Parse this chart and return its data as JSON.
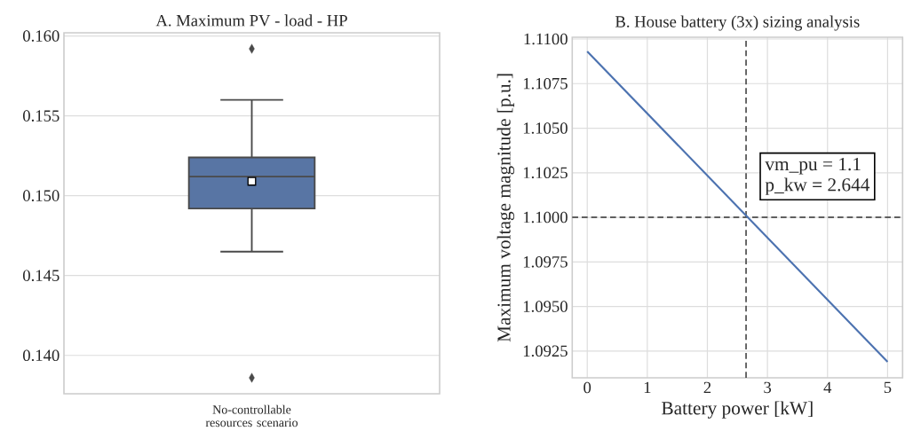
{
  "chart_data": [
    {
      "type": "box",
      "title": "A. Maximum PV - load - HP",
      "categories": [
        "No-controllable resources scenario"
      ],
      "color": "#5875a4",
      "boxes": [
        {
          "low": 0.1465,
          "q1": 0.1492,
          "median": 0.1512,
          "q3": 0.1524,
          "high": 0.156,
          "mean": 0.1509,
          "outliers": [
            0.1592,
            0.1386
          ]
        }
      ],
      "ylim": [
        0.1376,
        0.1602
      ],
      "yticks": [
        {
          "value": 0.14,
          "label": "0.140"
        },
        {
          "value": 0.145,
          "label": "0.145"
        },
        {
          "value": 0.15,
          "label": "0.150"
        },
        {
          "value": 0.155,
          "label": "0.155"
        },
        {
          "value": 0.16,
          "label": "0.160"
        }
      ],
      "grid": "y"
    },
    {
      "type": "line",
      "title": "B. House battery (3x) sizing analysis",
      "xlabel": "Battery power [kW]",
      "ylabel": "Maximum voltage magnitude [p.u.]",
      "x": [
        0,
        5
      ],
      "series": [
        {
          "color": "#4c72b0",
          "values": [
            1.1093,
            1.0919
          ]
        }
      ],
      "xlim": [
        -0.25,
        5.25
      ],
      "ylim": [
        1.091,
        1.1101
      ],
      "xticks": [
        0,
        1,
        2,
        3,
        4,
        5
      ],
      "yticks": [
        {
          "value": 1.0925,
          "label": "1.0925"
        },
        {
          "value": 1.095,
          "label": "1.0950"
        },
        {
          "value": 1.0975,
          "label": "1.0975"
        },
        {
          "value": 1.1,
          "label": "1.1000"
        },
        {
          "value": 1.1025,
          "label": "1.1025"
        },
        {
          "value": 1.105,
          "label": "1.1050"
        },
        {
          "value": 1.1075,
          "label": "1.1075"
        },
        {
          "value": 1.11,
          "label": "1.1100"
        }
      ],
      "grid": true,
      "ref_lines": [
        {
          "axis": "x",
          "value": 2.644,
          "color": "#333333",
          "line_style": "dashed"
        },
        {
          "axis": "y",
          "value": 1.1,
          "color": "#333333",
          "line_style": "dashed"
        }
      ],
      "annotations": [
        "vm_pu = 1.1",
        "p_kw = 2.644"
      ]
    }
  ]
}
